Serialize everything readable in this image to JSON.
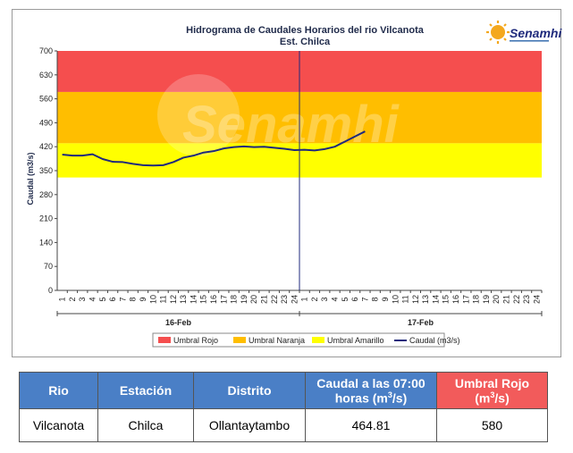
{
  "chart_data": {
    "type": "line",
    "title": "Hidrograma de Caudales Horarios del rio Vilcanota",
    "subtitle": "Est. Chilca",
    "logo_text": "Senamhi",
    "watermark": "Senamhi",
    "ylabel": "Caudal  (m3/s)",
    "ylim": [
      0,
      700
    ],
    "yticks": [
      0,
      70,
      140,
      210,
      280,
      350,
      420,
      490,
      560,
      630,
      700
    ],
    "x_tick_labels": [
      "1",
      "2",
      "3",
      "4",
      "5",
      "6",
      "7",
      "8",
      "9",
      "10",
      "11",
      "12",
      "13",
      "14",
      "15",
      "16",
      "17",
      "18",
      "19",
      "20",
      "21",
      "22",
      "23",
      "24",
      "1",
      "2",
      "3",
      "4",
      "5",
      "6",
      "7",
      "8",
      "9",
      "10",
      "11",
      "12",
      "13",
      "14",
      "15",
      "16",
      "17",
      "18",
      "19",
      "20",
      "21",
      "22",
      "23",
      "24"
    ],
    "days": [
      "16-Feb",
      "17-Feb"
    ],
    "bands": [
      {
        "name": "Umbral Rojo",
        "from": 580,
        "to": 700,
        "color": "#f54e4e"
      },
      {
        "name": "Umbral Naranja",
        "from": 430,
        "to": 580,
        "color": "#ffbe00"
      },
      {
        "name": "Umbral Amarillo",
        "from": 330,
        "to": 430,
        "color": "#ffff00"
      }
    ],
    "series": [
      {
        "name": "Caudal (m3/s)",
        "color": "#1f2a7c",
        "x": [
          1,
          2,
          3,
          4,
          5,
          6,
          7,
          8,
          9,
          10,
          11,
          12,
          13,
          14,
          15,
          16,
          17,
          18,
          19,
          20,
          21,
          22,
          23,
          24,
          25,
          26,
          27,
          28,
          29,
          30,
          31
        ],
        "values": [
          397,
          394,
          394,
          398,
          384,
          376,
          375,
          370,
          366,
          365,
          366,
          375,
          388,
          394,
          403,
          407,
          415,
          419,
          421,
          419,
          420,
          417,
          414,
          410,
          411,
          409,
          413,
          420,
          435,
          450,
          464.81
        ]
      }
    ],
    "legend": [
      "Umbral Rojo",
      "Umbral Naranja",
      "Umbral Amarillo",
      "Caudal (m3/s)"
    ],
    "legend_position": "bottom",
    "grid": false
  },
  "table": {
    "headers": [
      "Rio",
      "Estación",
      "Distrito",
      "Caudal a las 07:00 horas (m",
      "Umbral Rojo (m"
    ],
    "caudal_header_suffix": ")",
    "umbral_header_suffix": ")",
    "sup": "3",
    "unit_tail": "/s",
    "row": [
      "Vilcanota",
      "Chilca",
      "Ollantaytambo",
      "464.81",
      "580"
    ],
    "header_colors": {
      "blue": "#4a7fc6",
      "red": "#f25b5b"
    }
  }
}
